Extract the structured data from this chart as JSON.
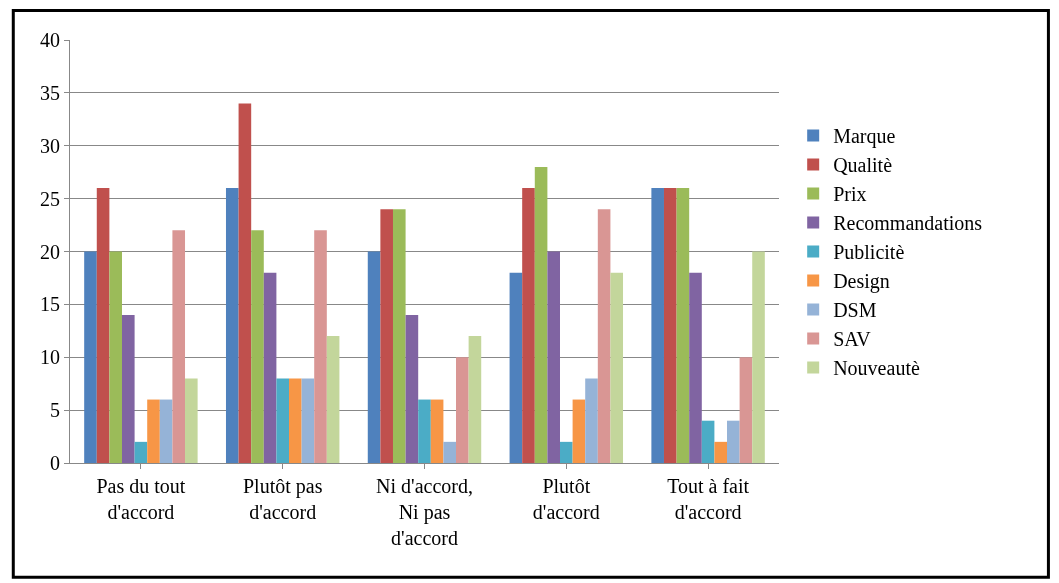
{
  "chart_data": {
    "type": "bar",
    "categories": [
      "Pas du tout\nd'accord",
      "Plutôt pas\nd'accord",
      "Ni d'accord,\nNi pas\nd'accord",
      "Plutôt\nd'accord",
      "Tout à fait\nd'accord"
    ],
    "series": [
      {
        "name": "Marque",
        "color": "#4f81bd",
        "values": [
          20,
          26,
          20,
          18,
          26
        ]
      },
      {
        "name": "Qualitè",
        "color": "#c0504d",
        "values": [
          26,
          34,
          24,
          26,
          26
        ]
      },
      {
        "name": "Prix",
        "color": "#9bbb59",
        "values": [
          20,
          22,
          24,
          28,
          26
        ]
      },
      {
        "name": "Recommandations",
        "color": "#8064a2",
        "values": [
          14,
          18,
          14,
          20,
          18
        ]
      },
      {
        "name": "Publicitè",
        "color": "#4bacc6",
        "values": [
          2,
          8,
          6,
          2,
          4
        ]
      },
      {
        "name": "Design",
        "color": "#f79646",
        "values": [
          6,
          8,
          6,
          6,
          2
        ]
      },
      {
        "name": "DSM",
        "color": "#95b3d7",
        "values": [
          6,
          8,
          2,
          8,
          4
        ]
      },
      {
        "name": "SAV",
        "color": "#d99694",
        "values": [
          22,
          22,
          10,
          24,
          10
        ]
      },
      {
        "name": "Nouveautè",
        "color": "#c3d69b",
        "values": [
          8,
          12,
          12,
          18,
          20
        ]
      }
    ],
    "ylim": [
      0,
      40
    ],
    "yticks": [
      0,
      5,
      10,
      15,
      20,
      25,
      30,
      35,
      40
    ],
    "grid": "y",
    "legend": "right"
  }
}
